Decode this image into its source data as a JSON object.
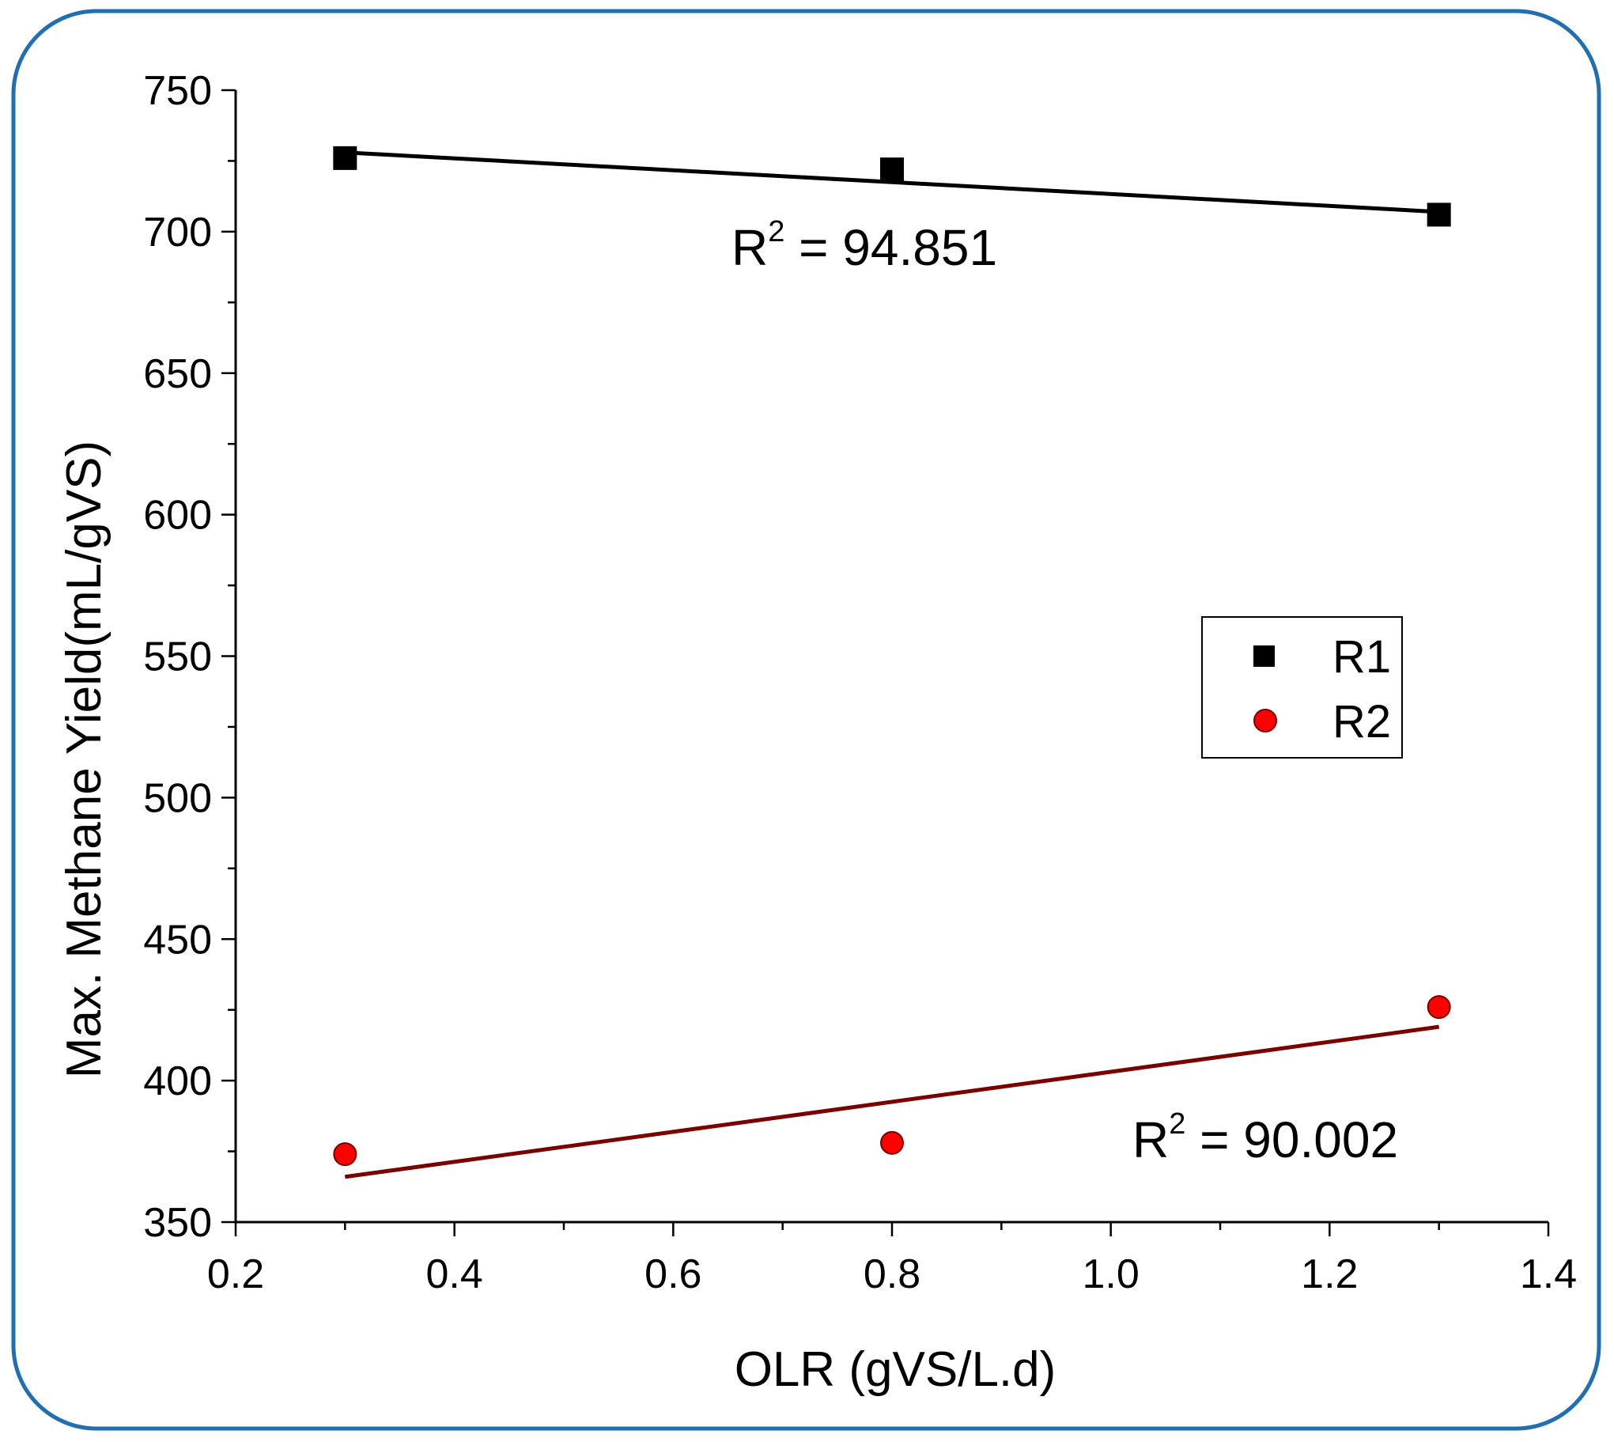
{
  "chart_data": {
    "type": "scatter",
    "title": "",
    "xlabel": "OLR (gVS/L.d)",
    "ylabel": "Max. Methane Yield(mL/gVS)",
    "xlim": [
      0.2,
      1.4
    ],
    "ylim": [
      350,
      750
    ],
    "x_ticks": [
      "0.2",
      "0.4",
      "0.6",
      "0.8",
      "1.0",
      "1.2",
      "1.4"
    ],
    "y_ticks": [
      "350",
      "400",
      "450",
      "500",
      "550",
      "600",
      "650",
      "700",
      "750"
    ],
    "legend_position": "center-right",
    "series": [
      {
        "name": "R1",
        "marker": "square",
        "color": "#000000",
        "x": [
          0.3,
          0.8,
          1.3
        ],
        "y": [
          726,
          722,
          706
        ],
        "fit": {
          "x": [
            0.3,
            1.3
          ],
          "y": [
            728,
            707
          ],
          "color": "#000000"
        },
        "annotation": {
          "base": "R",
          "sup": "2",
          "rest": " = 94.851"
        }
      },
      {
        "name": "R2",
        "marker": "circle",
        "color": "#ff0000",
        "x": [
          0.3,
          0.8,
          1.3
        ],
        "y": [
          374,
          378,
          426
        ],
        "fit": {
          "x": [
            0.3,
            1.3
          ],
          "y": [
            366,
            419
          ],
          "color": "#7a0000"
        },
        "annotation": {
          "base": "R",
          "sup": "2",
          "rest": " = 90.002"
        }
      }
    ]
  }
}
